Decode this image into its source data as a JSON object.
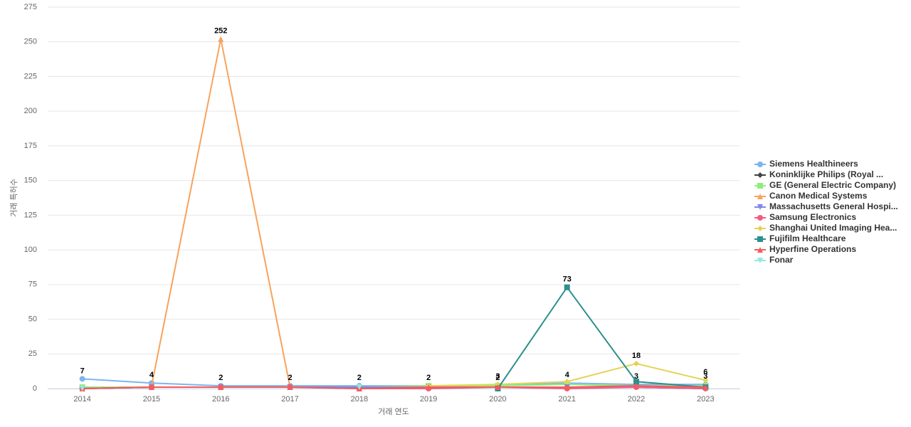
{
  "chart_data": {
    "type": "line",
    "x_label": "거래 연도",
    "y_label": "거래 특허수",
    "categories": [
      "2014",
      "2015",
      "2016",
      "2017",
      "2018",
      "2019",
      "2020",
      "2021",
      "2022",
      "2023"
    ],
    "ylim": [
      0,
      275
    ],
    "yticks": [
      0,
      25,
      50,
      75,
      100,
      125,
      150,
      175,
      200,
      225,
      250,
      275
    ],
    "grid": true,
    "legend": "right",
    "series": [
      {
        "name": "Siemens Healthineers",
        "color": "#7cb5ec",
        "values": [
          7,
          4,
          2,
          2,
          2,
          2,
          2,
          4,
          3,
          3
        ]
      },
      {
        "name": "Koninklijke Philips (Royal ...",
        "color": "#434348",
        "values": [
          0,
          1,
          1,
          1,
          1,
          1,
          1,
          1,
          1,
          0
        ]
      },
      {
        "name": "GE (General Electric Company)",
        "color": "#90ed7d",
        "values": [
          1,
          1,
          1,
          1,
          1,
          2,
          2,
          3,
          2,
          2
        ]
      },
      {
        "name": "Canon Medical Systems",
        "color": "#f7a35c",
        "values": [
          null,
          2,
          252,
          1,
          null,
          null,
          null,
          null,
          null,
          null
        ]
      },
      {
        "name": "Massachusetts General Hospi...",
        "color": "#8085e9",
        "values": [
          0,
          1,
          1,
          1,
          1,
          1,
          1,
          1,
          1,
          1
        ]
      },
      {
        "name": "Samsung Electronics",
        "color": "#f15c80",
        "values": [
          0,
          1,
          1,
          1,
          0,
          0,
          1,
          0,
          1,
          0
        ]
      },
      {
        "name": "Shanghai United Imaging Hea...",
        "color": "#e4d354",
        "values": [
          null,
          null,
          null,
          null,
          null,
          2,
          3,
          5,
          18,
          6
        ]
      },
      {
        "name": "Fujifilm Healthcare",
        "color": "#2b908f",
        "values": [
          null,
          null,
          null,
          null,
          null,
          null,
          0,
          73,
          5,
          1
        ]
      },
      {
        "name": "Hyperfine Operations",
        "color": "#f45b5b",
        "values": [
          0,
          1,
          1,
          1,
          0,
          1,
          1,
          1,
          2,
          1
        ]
      },
      {
        "name": "Fonar",
        "color": "#91e8e1",
        "values": [
          0,
          null,
          null,
          null,
          1,
          null,
          null,
          null,
          null,
          null
        ]
      }
    ]
  }
}
